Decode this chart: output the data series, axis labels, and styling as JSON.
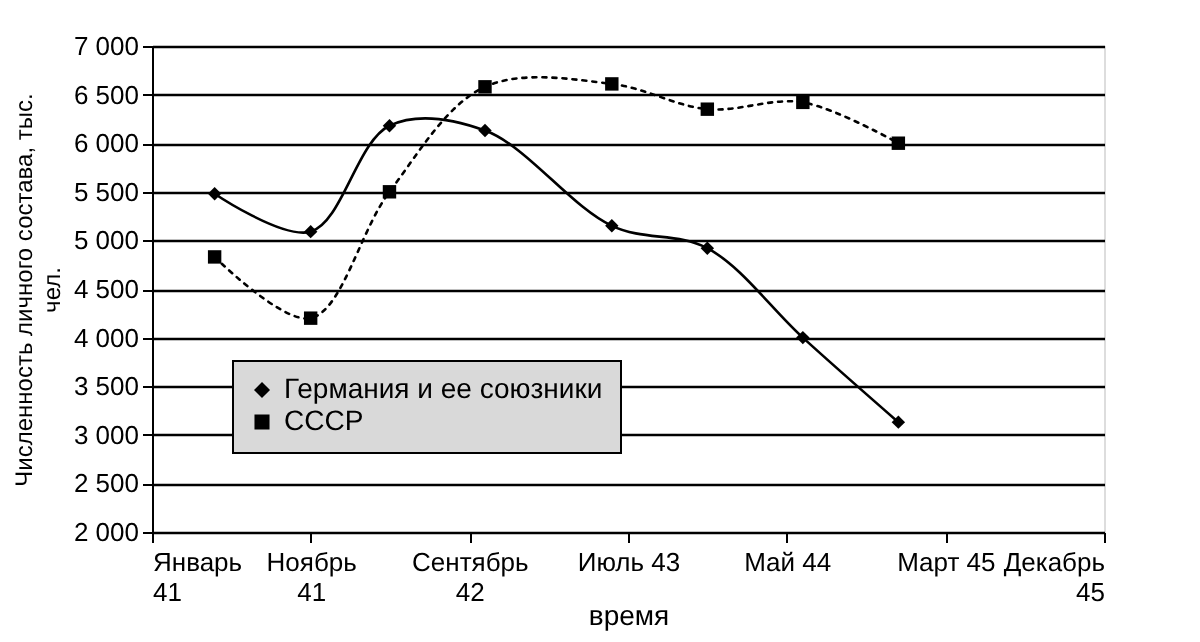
{
  "chart_data": {
    "type": "line",
    "xlabel": "время",
    "ylabel": "Численность личного состава, тыс. чел.",
    "x": [
      "1941-05",
      "1941-11",
      "1942-04",
      "1942-10",
      "1943-06",
      "1943-12",
      "1944-06",
      "1944-12"
    ],
    "series": [
      {
        "name": "Германия и ее союзники",
        "color": "#000000",
        "marker": "diamond",
        "line_style": "solid",
        "values": [
          5480,
          5090,
          6180,
          6130,
          5150,
          4920,
          4000,
          3130
        ]
      },
      {
        "name": "СССР",
        "color": "#000000",
        "marker": "square",
        "line_style": "dotted",
        "values": [
          4830,
          4200,
          5500,
          6580,
          6610,
          6350,
          6420,
          6000
        ]
      }
    ],
    "xlim": [
      "1941-01-01",
      "1945-12-30"
    ],
    "xticks": [
      {
        "value": "1941-01-01",
        "label": "Январь 41"
      },
      {
        "value": "1941-11-01",
        "label": "Ноябрь 41"
      },
      {
        "value": "1942-09-01",
        "label": "Сентябрь 42"
      },
      {
        "value": "1943-07-02",
        "label": "Июль 43"
      },
      {
        "value": "1944-05-01",
        "label": "Май 44"
      },
      {
        "value": "1945-03-01",
        "label": "Март 45"
      },
      {
        "value": "1945-12-30",
        "label": "Декабрь 45"
      }
    ],
    "ylim": [
      2000,
      7000
    ],
    "yticks": [
      {
        "value": 2000,
        "label": "2 000"
      },
      {
        "value": 2500,
        "label": "2 500"
      },
      {
        "value": 3000,
        "label": "3 000"
      },
      {
        "value": 3500,
        "label": "3 500"
      },
      {
        "value": 4000,
        "label": "4 000"
      },
      {
        "value": 4500,
        "label": "4 500"
      },
      {
        "value": 5000,
        "label": "5 000"
      },
      {
        "value": 5500,
        "label": "5 500"
      },
      {
        "value": 6000,
        "label": "6 000"
      },
      {
        "value": 6500,
        "label": "6 500"
      },
      {
        "value": 7000,
        "label": "7 000"
      }
    ],
    "grid": "y",
    "legend": "bottom left"
  }
}
